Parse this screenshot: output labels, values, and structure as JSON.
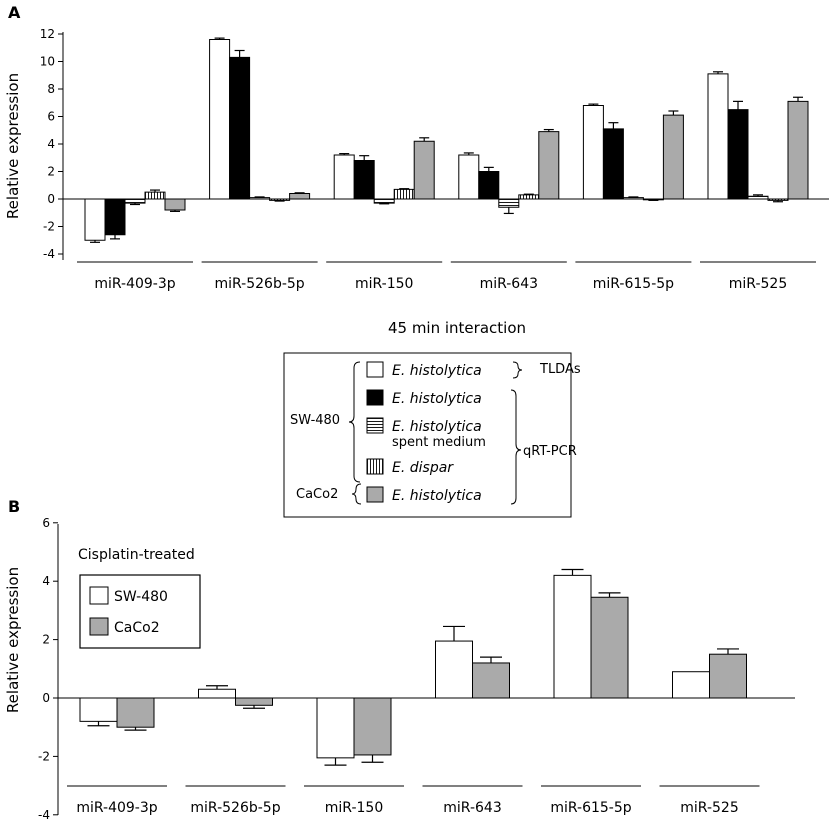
{
  "chart_data": [
    {
      "panel": "A",
      "type": "bar",
      "title": "45 min interaction",
      "ylabel": "Relative expression",
      "xlabel": "",
      "ylim": [
        -4,
        12
      ],
      "yticks": [
        "-4",
        "-2",
        "0",
        "2",
        "4",
        "6",
        "8",
        "10",
        "12"
      ],
      "categories": [
        "miR-409-3p",
        "miR-526b-5p",
        "miR-150",
        "miR-643",
        "miR-615-5p",
        "miR-525"
      ],
      "series": [
        {
          "name": "E. histolytica (TLDAs)",
          "fill": "white",
          "values": [
            -3.0,
            11.6,
            3.2,
            3.2,
            6.8,
            9.1
          ],
          "errors": [
            0.15,
            0.1,
            0.1,
            0.15,
            0.1,
            0.15
          ]
        },
        {
          "name": "E. histolytica (qRT-PCR)",
          "fill": "black",
          "values": [
            -2.6,
            10.3,
            2.8,
            2.0,
            5.1,
            6.5
          ],
          "errors": [
            0.3,
            0.5,
            0.35,
            0.3,
            0.45,
            0.6
          ]
        },
        {
          "name": "E. histolytica spent medium",
          "fill": "hstripes",
          "values": [
            -0.3,
            0.1,
            -0.3,
            -0.6,
            0.1,
            0.2
          ],
          "errors": [
            0.1,
            0.05,
            0.05,
            0.45,
            0.05,
            0.1
          ]
        },
        {
          "name": "E. dispar",
          "fill": "vstripes",
          "values": [
            0.5,
            -0.1,
            0.7,
            0.3,
            -0.05,
            -0.1
          ],
          "errors": [
            0.15,
            0.05,
            0.05,
            0.05,
            0.05,
            0.1
          ]
        },
        {
          "name": "CaCo2 E. histolytica",
          "fill": "gray",
          "values": [
            -0.8,
            0.4,
            4.2,
            4.9,
            6.1,
            7.1
          ],
          "errors": [
            0.1,
            0.05,
            0.25,
            0.15,
            0.3,
            0.3
          ]
        }
      ]
    },
    {
      "panel": "B",
      "type": "bar",
      "title": "Cisplatin-treated",
      "ylabel": "Relative expression",
      "xlabel": "",
      "ylim": [
        -4,
        6
      ],
      "yticks": [
        "-4",
        "-2",
        "0",
        "2",
        "4",
        "6"
      ],
      "categories": [
        "miR-409-3p",
        "miR-526b-5p",
        "miR-150",
        "miR-643",
        "miR-615-5p",
        "miR-525"
      ],
      "series": [
        {
          "name": "SW-480",
          "fill": "white",
          "values": [
            -0.8,
            0.3,
            -2.05,
            1.95,
            4.2,
            0.9
          ],
          "errors": [
            0.15,
            0.12,
            0.25,
            0.5,
            0.2,
            0.0
          ]
        },
        {
          "name": "CaCo2",
          "fill": "gray",
          "values": [
            -1.0,
            -0.25,
            -1.95,
            1.2,
            3.45,
            1.5
          ],
          "errors": [
            0.1,
            0.1,
            0.25,
            0.2,
            0.15,
            0.18
          ]
        }
      ]
    }
  ],
  "panel_labels": {
    "a": "A",
    "b": "B"
  },
  "legend_a": {
    "rows": [
      {
        "species": "E. histolytica",
        "extra": ""
      },
      {
        "species": "E. histolytica",
        "extra": ""
      },
      {
        "species": "E. histolytica",
        "extra": "spent medium"
      },
      {
        "species": "E. dispar",
        "extra": ""
      },
      {
        "species": "E. histolytica",
        "extra": ""
      }
    ],
    "cell_sw480": "SW-480",
    "cell_caco2": "CaCo2",
    "method_tldas": "TLDAs",
    "method_qrtpcr": "qRT-PCR"
  },
  "legend_b": {
    "items": [
      "SW-480",
      "CaCo2"
    ]
  }
}
